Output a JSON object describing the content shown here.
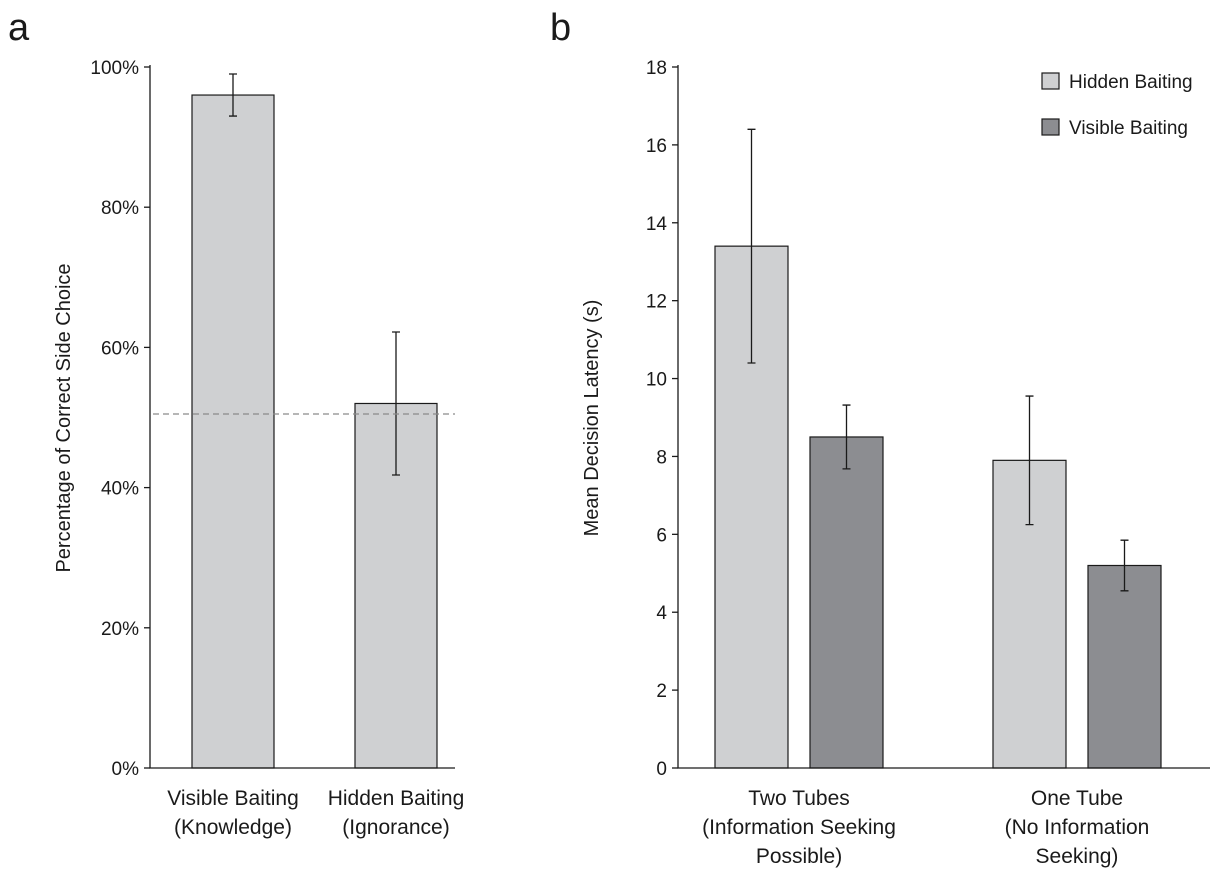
{
  "colors": {
    "hidden": "#cfd0d2",
    "visible": "#8c8d91"
  },
  "chart_data": [
    {
      "type": "bar",
      "panel": "a",
      "title": "",
      "xlabel": "",
      "ylabel": "Percentage of Correct Side Choice",
      "ylim": [
        0,
        100
      ],
      "yticks": [
        {
          "value": 0,
          "label": "0%"
        },
        {
          "value": 20,
          "label": "20%"
        },
        {
          "value": 40,
          "label": "40%"
        },
        {
          "value": 60,
          "label": "60%"
        },
        {
          "value": 80,
          "label": "80%"
        },
        {
          "value": 100,
          "label": "100%"
        }
      ],
      "categories": [
        {
          "lines": [
            "Visible Baiting",
            "(Knowledge)"
          ]
        },
        {
          "lines": [
            "Hidden Baiting",
            "(Ignorance)"
          ]
        }
      ],
      "values": [
        96,
        52
      ],
      "errors": [
        [
          93,
          99
        ],
        [
          41.8,
          62.2
        ]
      ],
      "reference_line": 50.5,
      "grid": false
    },
    {
      "type": "bar",
      "panel": "b",
      "title": "",
      "xlabel": "",
      "ylabel": "Mean Decision Latency (s)",
      "ylim": [
        0,
        18
      ],
      "yticks": [
        {
          "value": 0,
          "label": "0"
        },
        {
          "value": 2,
          "label": "2"
        },
        {
          "value": 4,
          "label": "4"
        },
        {
          "value": 6,
          "label": "6"
        },
        {
          "value": 8,
          "label": "8"
        },
        {
          "value": 10,
          "label": "10"
        },
        {
          "value": 12,
          "label": "12"
        },
        {
          "value": 14,
          "label": "14"
        },
        {
          "value": 16,
          "label": "16"
        },
        {
          "value": 18,
          "label": "18"
        }
      ],
      "categories": [
        {
          "lines": [
            "Two Tubes",
            "(Information Seeking",
            "Possible)"
          ]
        },
        {
          "lines": [
            "One Tube",
            "(No Information",
            "Seeking)"
          ]
        }
      ],
      "series": [
        {
          "name": "Hidden Baiting",
          "values": [
            13.4,
            7.9
          ],
          "errors": [
            [
              10.4,
              16.4
            ],
            [
              6.25,
              9.55
            ]
          ]
        },
        {
          "name": "Visible Baiting",
          "values": [
            8.5,
            5.2
          ],
          "errors": [
            [
              7.68,
              9.32
            ],
            [
              4.55,
              5.85
            ]
          ]
        }
      ],
      "legend": "top-right",
      "grid": false
    }
  ]
}
